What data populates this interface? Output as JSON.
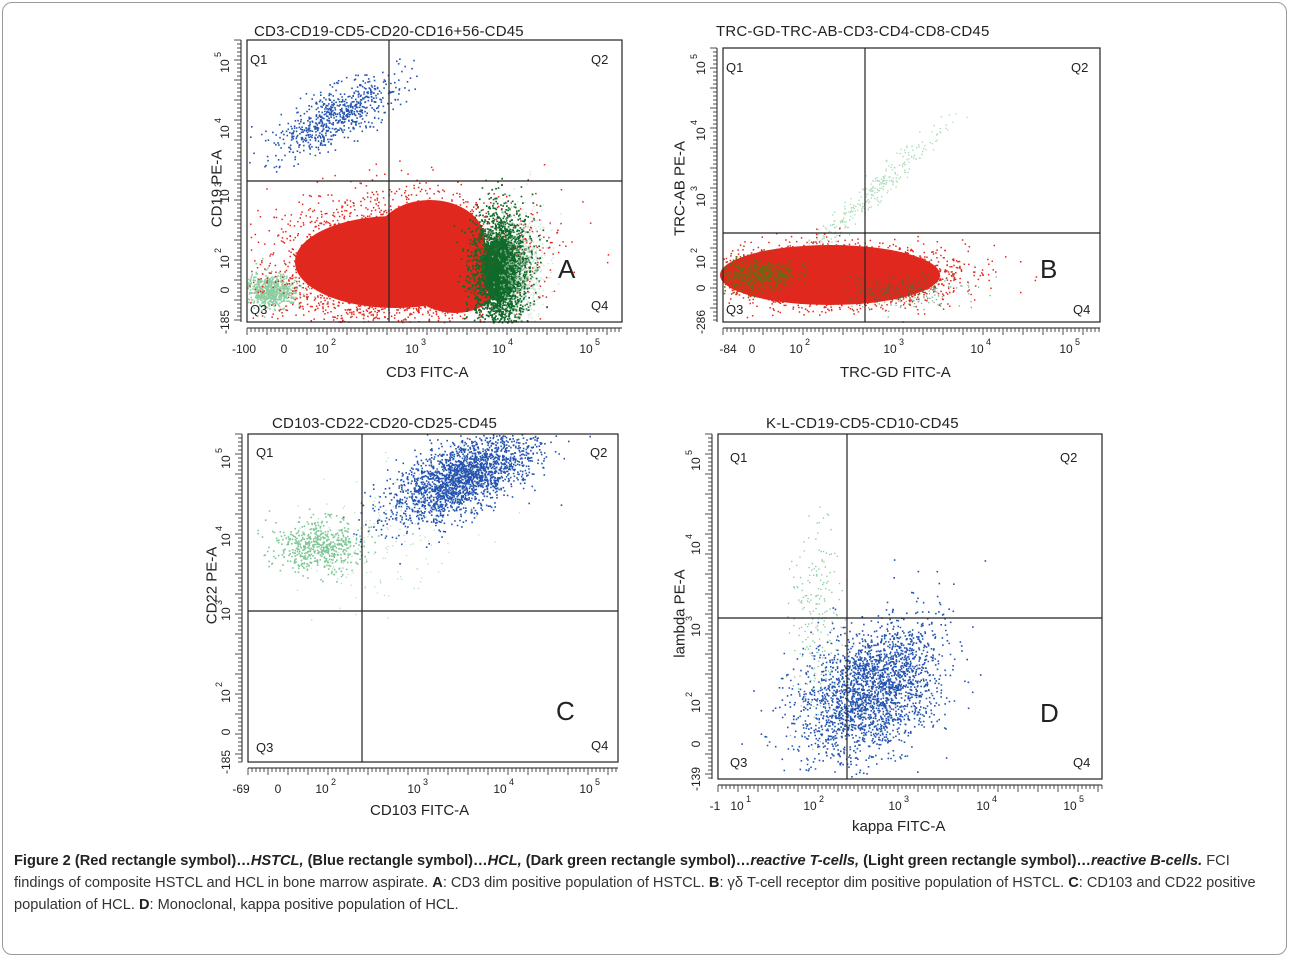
{
  "figure": {
    "panels": [
      {
        "id": "A",
        "title": "CD3-CD19-CD5-CD20-CD16+56-CD45",
        "xlabel": "CD3 FITC-A",
        "ylabel": "CD19 PE-A",
        "letter": "A",
        "quadrants": [
          "Q1",
          "Q2",
          "Q3",
          "Q4"
        ],
        "x_ticks": [
          "-100",
          "0",
          "10",
          "10",
          "10",
          "10"
        ],
        "x_exps": [
          "",
          "",
          "2",
          "3",
          "4",
          "5"
        ],
        "y_ticks": [
          "-185",
          "0",
          "10",
          "10",
          "10",
          "10"
        ],
        "y_exps": [
          "",
          "",
          "2",
          "3",
          "4",
          "5"
        ]
      },
      {
        "id": "B",
        "title": "TRC-GD-TRC-AB-CD3-CD4-CD8-CD45",
        "xlabel": "TRC-GD FITC-A",
        "ylabel": "TRC-AB PE-A",
        "letter": "B",
        "quadrants": [
          "Q1",
          "Q2",
          "Q3",
          "Q4"
        ],
        "x_ticks": [
          "-84",
          "0",
          "10",
          "10",
          "10",
          "10"
        ],
        "x_exps": [
          "",
          "",
          "2",
          "3",
          "4",
          "5"
        ],
        "y_ticks": [
          "-286",
          "0",
          "10",
          "10",
          "10",
          "10"
        ],
        "y_exps": [
          "",
          "",
          "2",
          "3",
          "4",
          "5"
        ]
      },
      {
        "id": "C",
        "title": "CD103-CD22-CD20-CD25-CD45",
        "xlabel": "CD103 FITC-A",
        "ylabel": "CD22 PE-A",
        "letter": "C",
        "quadrants": [
          "Q1",
          "Q2",
          "Q3",
          "Q4"
        ],
        "x_ticks": [
          "-69",
          "0",
          "10",
          "10",
          "10",
          "10"
        ],
        "x_exps": [
          "",
          "",
          "2",
          "3",
          "4",
          "5"
        ],
        "y_ticks": [
          "-185",
          "0",
          "10",
          "10",
          "10",
          "10"
        ],
        "y_exps": [
          "",
          "",
          "2",
          "3",
          "4",
          "5"
        ]
      },
      {
        "id": "D",
        "title": "K-L-CD19-CD5-CD10-CD45",
        "xlabel": "kappa FITC-A",
        "ylabel": "lambda PE-A",
        "letter": "D",
        "quadrants": [
          "Q1",
          "Q2",
          "Q3",
          "Q4"
        ],
        "x_ticks": [
          "-1",
          "10",
          "10",
          "10",
          "10",
          "10"
        ],
        "x_exps": [
          "",
          "1",
          "2",
          "3",
          "4",
          "5"
        ],
        "y_ticks": [
          "-139",
          "0",
          "10",
          "10",
          "10",
          "10"
        ],
        "y_exps": [
          "",
          "",
          "2",
          "3",
          "4",
          "5"
        ]
      }
    ],
    "colors": {
      "hstcl": "#e0281e",
      "hcl": "#2454b0",
      "reactive_t": "#0f6a2a",
      "reactive_b": "#6fc08a"
    }
  },
  "caption": {
    "fig_label": "Figure 2",
    "legend_red": "(Red rectangle symbol)…",
    "legend_red_name": "HSTCL,",
    "legend_blue": " (Blue rectangle symbol)…",
    "legend_blue_name": "HCL,",
    "legend_dgreen": " (Dark green rectangle symbol)…",
    "legend_dgreen_name": "reactive T-cells,",
    "legend_lgreen": " (Light green rectangle symbol)…",
    "legend_lgreen_name": "reactive B-cells.",
    "text1": " FCI findings of composite HSTCL and HCL in bone marrow aspirate. ",
    "a_label": "A",
    "a_text": ": CD3 dim positive population of HSTCL. ",
    "b_label": "B",
    "b_text": ": γδ T-cell receptor dim positive population of HSTCL. ",
    "c_label": "C",
    "c_text": ": CD103 and CD22 positive population of HCL. ",
    "d_label": "D",
    "d_text": ": Monoclonal, kappa positive population of HCL."
  }
}
